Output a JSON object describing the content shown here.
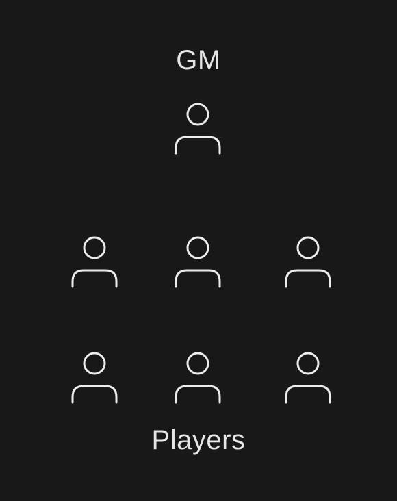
{
  "diagram": {
    "gm_label": "GM",
    "players_label": "Players",
    "gm": {
      "icon": "person-icon"
    },
    "players": [
      {
        "icon": "person-icon"
      },
      {
        "icon": "person-icon"
      },
      {
        "icon": "person-icon"
      },
      {
        "icon": "person-icon"
      },
      {
        "icon": "person-icon"
      },
      {
        "icon": "person-icon"
      }
    ]
  },
  "colors": {
    "background": "#181818",
    "text": "#e6e6e6",
    "icon_stroke": "#ececec"
  }
}
